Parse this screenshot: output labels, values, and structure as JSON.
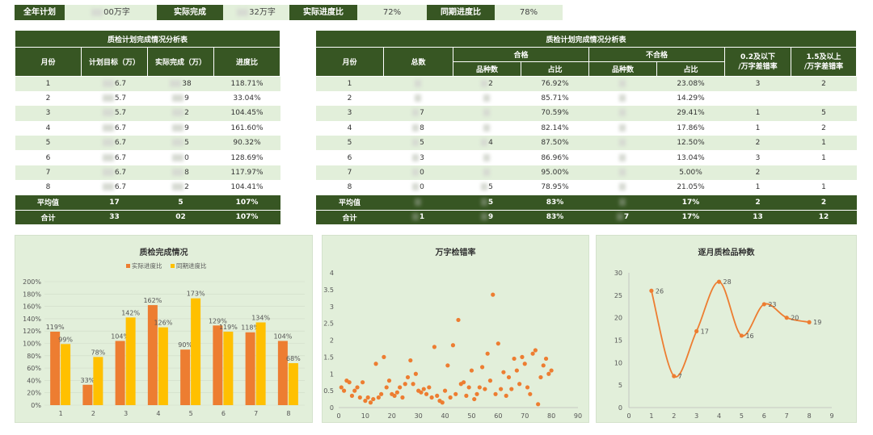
{
  "summary": {
    "plan_label": "全年计划",
    "plan_value": "00万字",
    "actual_label": "实际完成",
    "actual_value": "32万字",
    "progress_label": "实际进度比",
    "progress_value": "72%",
    "yoy_label": "同期进度比",
    "yoy_value": "78%"
  },
  "table1": {
    "title": "质检计划完成情况分析表",
    "headers": [
      "月份",
      "计划目标（万）",
      "实际完成（万）",
      "进度比"
    ],
    "rows": [
      [
        "1",
        "6.7",
        "38",
        "118.71%"
      ],
      [
        "2",
        "5.7",
        "9",
        "33.04%"
      ],
      [
        "3",
        "5.7",
        "2",
        "104.45%"
      ],
      [
        "4",
        "6.7",
        "9",
        "161.60%"
      ],
      [
        "5",
        "6.7",
        "5",
        "90.32%"
      ],
      [
        "6",
        "6.7",
        "0",
        "128.69%"
      ],
      [
        "7",
        "6.7",
        "8",
        "117.97%"
      ],
      [
        "8",
        "6.7",
        "2",
        "104.41%"
      ]
    ],
    "avg": [
      "平均值",
      "17",
      "5",
      "107%"
    ],
    "total": [
      "合计",
      "33",
      "02",
      "107%"
    ]
  },
  "table2": {
    "title": "质检计划完成情况分析表",
    "h_month": "月份",
    "h_total": "总数",
    "h_pass": "合格",
    "h_fail": "不合格",
    "h_err1": "0.2及以下\n/万字差错率",
    "h_err2": "1.5及以上\n/万字差错率",
    "h_kinds": "品种数",
    "h_ratio": "占比",
    "rows": [
      [
        "1",
        "",
        "2",
        "76.92%",
        "",
        "23.08%",
        "3",
        "2"
      ],
      [
        "2",
        "",
        "",
        "85.71%",
        "",
        "14.29%",
        "",
        ""
      ],
      [
        "3",
        "7",
        "",
        "70.59%",
        "",
        "29.41%",
        "1",
        "5"
      ],
      [
        "4",
        "8",
        "",
        "82.14%",
        "",
        "17.86%",
        "1",
        "2"
      ],
      [
        "5",
        "5",
        "4",
        "87.50%",
        "",
        "12.50%",
        "2",
        "1"
      ],
      [
        "6",
        "3",
        "",
        "86.96%",
        "",
        "13.04%",
        "3",
        "1"
      ],
      [
        "7",
        "0",
        "",
        "95.00%",
        "",
        "5.00%",
        "2",
        ""
      ],
      [
        "8",
        "0",
        "5",
        "78.95%",
        "",
        "21.05%",
        "1",
        "1"
      ]
    ],
    "avg": [
      "平均值",
      "",
      "5",
      "83%",
      "",
      "17%",
      "2",
      "2"
    ],
    "total": [
      "合计",
      "1",
      "9",
      "83%",
      "7",
      "17%",
      "13",
      "12"
    ]
  },
  "chart_data": [
    {
      "type": "bar",
      "title": "质检完成情况",
      "categories": [
        "1",
        "2",
        "3",
        "4",
        "5",
        "6",
        "7",
        "8"
      ],
      "series": [
        {
          "name": "实际进度比",
          "values": [
            119,
            33,
            104,
            162,
            90,
            129,
            118,
            104
          ],
          "color": "#ed7d31"
        },
        {
          "name": "同期进度比",
          "values": [
            99,
            78,
            142,
            126,
            173,
            119,
            134,
            68
          ],
          "color": "#ffc000"
        }
      ],
      "ylim": [
        0,
        200
      ],
      "yticks": [
        "0%",
        "20%",
        "40%",
        "60%",
        "80%",
        "100%",
        "120%",
        "140%",
        "160%",
        "180%",
        "200%"
      ],
      "legend": "top-center"
    },
    {
      "type": "scatter",
      "title": "万字检错率",
      "xlim": [
        0,
        90
      ],
      "ylim": [
        0,
        4
      ],
      "xticks": [
        "0",
        "10",
        "20",
        "30",
        "40",
        "50",
        "60",
        "70",
        "80",
        "90"
      ],
      "yticks": [
        "0",
        "0.5",
        "1",
        "1.5",
        "2",
        "2.5",
        "3",
        "3.5",
        "4"
      ],
      "color": "#ed7d31",
      "points": [
        [
          1,
          0.6
        ],
        [
          2,
          0.5
        ],
        [
          3,
          0.8
        ],
        [
          4,
          0.75
        ],
        [
          5,
          0.35
        ],
        [
          6,
          0.5
        ],
        [
          7,
          0.6
        ],
        [
          8,
          0.3
        ],
        [
          9,
          0.75
        ],
        [
          10,
          0.2
        ],
        [
          11,
          0.3
        ],
        [
          12,
          0.15
        ],
        [
          13,
          0.25
        ],
        [
          14,
          1.3
        ],
        [
          15,
          0.3
        ],
        [
          16,
          0.4
        ],
        [
          17,
          1.5
        ],
        [
          18,
          0.6
        ],
        [
          19,
          0.8
        ],
        [
          20,
          0.4
        ],
        [
          21,
          0.35
        ],
        [
          22,
          0.45
        ],
        [
          23,
          0.6
        ],
        [
          24,
          0.3
        ],
        [
          25,
          0.7
        ],
        [
          26,
          0.9
        ],
        [
          27,
          1.4
        ],
        [
          28,
          0.7
        ],
        [
          29,
          1.0
        ],
        [
          30,
          0.5
        ],
        [
          31,
          0.45
        ],
        [
          32,
          0.55
        ],
        [
          33,
          0.4
        ],
        [
          34,
          0.6
        ],
        [
          35,
          0.3
        ],
        [
          36,
          1.8
        ],
        [
          37,
          0.35
        ],
        [
          38,
          0.2
        ],
        [
          39,
          0.15
        ],
        [
          40,
          0.5
        ],
        [
          41,
          1.25
        ],
        [
          42,
          0.3
        ],
        [
          43,
          1.85
        ],
        [
          44,
          0.4
        ],
        [
          45,
          2.6
        ],
        [
          46,
          0.7
        ],
        [
          47,
          0.75
        ],
        [
          48,
          0.35
        ],
        [
          49,
          0.6
        ],
        [
          50,
          1.1
        ],
        [
          51,
          0.25
        ],
        [
          52,
          0.4
        ],
        [
          53,
          0.6
        ],
        [
          54,
          1.2
        ],
        [
          55,
          0.55
        ],
        [
          56,
          1.6
        ],
        [
          57,
          0.8
        ],
        [
          58,
          3.35
        ],
        [
          59,
          0.4
        ],
        [
          60,
          1.9
        ],
        [
          61,
          0.55
        ],
        [
          62,
          1.05
        ],
        [
          63,
          0.35
        ],
        [
          64,
          0.9
        ],
        [
          65,
          0.55
        ],
        [
          66,
          1.45
        ],
        [
          67,
          1.1
        ],
        [
          68,
          0.7
        ],
        [
          69,
          1.5
        ],
        [
          70,
          1.3
        ],
        [
          71,
          0.6
        ],
        [
          72,
          0.4
        ],
        [
          73,
          1.6
        ],
        [
          74,
          1.7
        ],
        [
          75,
          0.1
        ],
        [
          76,
          0.9
        ],
        [
          77,
          1.25
        ],
        [
          78,
          1.45
        ],
        [
          79,
          1.0
        ],
        [
          80,
          1.1
        ]
      ]
    },
    {
      "type": "line",
      "title": "逐月质检品种数",
      "x": [
        1,
        2,
        3,
        4,
        5,
        6,
        7,
        8
      ],
      "values": [
        26,
        7,
        17,
        28,
        16,
        23,
        20,
        19
      ],
      "labels": [
        "26",
        "7",
        "17",
        "28",
        "16",
        "23",
        "20",
        "19"
      ],
      "xlim": [
        0,
        9
      ],
      "ylim": [
        0,
        30
      ],
      "xticks": [
        "0",
        "1",
        "2",
        "3",
        "4",
        "5",
        "6",
        "7",
        "8",
        "9"
      ],
      "yticks": [
        "0",
        "5",
        "10",
        "15",
        "20",
        "25",
        "30"
      ],
      "color": "#ed7d31",
      "smooth": true
    }
  ]
}
